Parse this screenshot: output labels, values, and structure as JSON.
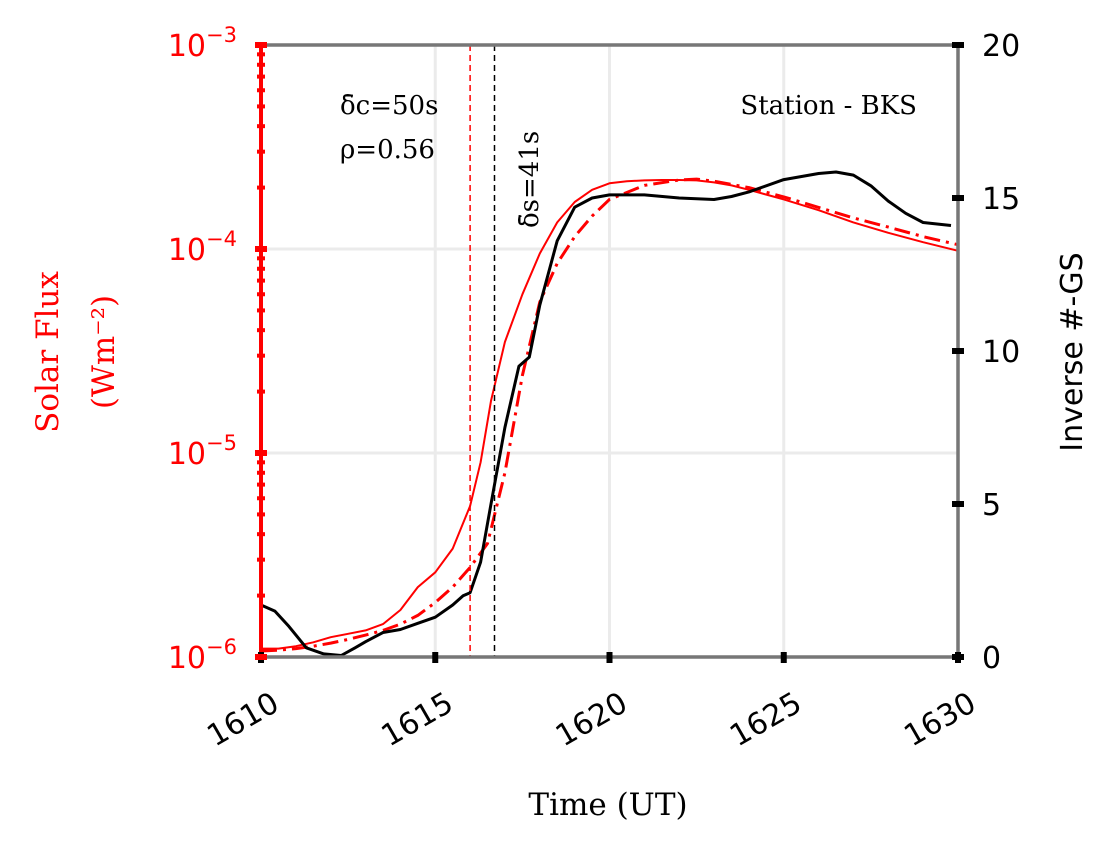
{
  "chart_data": {
    "type": "line",
    "xlabel": "Time (UT)",
    "ylabel_left": [
      "Solar Flux",
      "(Wm⁻²)"
    ],
    "ylabel_right": "Inverse #-GS",
    "xlim": [
      1610,
      1630
    ],
    "x_ticks": [
      1610,
      1615,
      1620,
      1625,
      1630
    ],
    "x_tick_labels": [
      "1610",
      "1615",
      "1620",
      "1625",
      "1630"
    ],
    "ylim_left": [
      1e-06,
      0.001
    ],
    "y_scale_left": "log",
    "y_left_ticks": [
      1e-06,
      1e-05,
      0.0001,
      0.001
    ],
    "y_left_tick_labels": [
      {
        "base": "10",
        "exp": "−6"
      },
      {
        "base": "10",
        "exp": "−5"
      },
      {
        "base": "10",
        "exp": "−4"
      },
      {
        "base": "10",
        "exp": "−3"
      }
    ],
    "ylim_right": [
      0,
      20
    ],
    "y_right_ticks": [
      0,
      5,
      10,
      15,
      20
    ],
    "y_right_tick_labels": [
      "0",
      "5",
      "10",
      "15",
      "20"
    ],
    "grid": true,
    "colors": {
      "flux": "#ff0000",
      "gs": "#000000",
      "spine": "#777777",
      "grid": "#ebebeb"
    },
    "annotations": {
      "delta_c": "δ̄c=50s",
      "rho": "ρ=0.56",
      "delta_s": "δ̄s=41s",
      "station": "Station - BKS"
    },
    "vlines": [
      {
        "x": 1616.0,
        "color": "#ff0000"
      },
      {
        "x": 1616.7,
        "color": "#000000"
      }
    ],
    "series": [
      {
        "axis": "left",
        "style": "solid",
        "color": "#ff0000",
        "x": [
          1610.0,
          1610.5,
          1611.0,
          1611.5,
          1612.0,
          1612.5,
          1613.0,
          1613.5,
          1614.0,
          1614.5,
          1615.0,
          1615.5,
          1616.0,
          1616.3,
          1616.6,
          1617.0,
          1617.5,
          1618.0,
          1618.5,
          1619.0,
          1619.5,
          1620.0,
          1620.5,
          1621.0,
          1621.5,
          1622.0,
          1622.5,
          1623.0,
          1623.5,
          1624.0,
          1625.0,
          1626.0,
          1627.0,
          1628.0,
          1629.0,
          1630.0
        ],
        "y": [
          1.1e-06,
          1.1e-06,
          1.13e-06,
          1.18e-06,
          1.25e-06,
          1.3e-06,
          1.35e-06,
          1.45e-06,
          1.7e-06,
          2.2e-06,
          2.6e-06,
          3.4e-06,
          5.5e-06,
          9e-06,
          1.8e-05,
          3.5e-05,
          6e-05,
          9.5e-05,
          0.000135,
          0.00017,
          0.000195,
          0.00021,
          0.000215,
          0.000217,
          0.000218,
          0.000218,
          0.000217,
          0.000212,
          0.000205,
          0.000195,
          0.000175,
          0.000155,
          0.000135,
          0.00012,
          0.000108,
          9.8e-05
        ]
      },
      {
        "axis": "left",
        "style": "dashdot",
        "color": "#ff0000",
        "x": [
          1610.0,
          1610.5,
          1611.0,
          1611.5,
          1612.0,
          1612.5,
          1613.0,
          1613.5,
          1614.0,
          1614.5,
          1615.0,
          1615.5,
          1616.0,
          1616.5,
          1617.0,
          1617.5,
          1618.0,
          1618.5,
          1619.0,
          1619.5,
          1620.0,
          1621.0,
          1622.0,
          1622.5,
          1623.0,
          1624.0,
          1625.0,
          1626.0,
          1627.0,
          1628.0,
          1629.0,
          1630.0
        ],
        "y": [
          1.07e-06,
          1.08e-06,
          1.1e-06,
          1.13e-06,
          1.17e-06,
          1.22e-06,
          1.28e-06,
          1.35e-06,
          1.45e-06,
          1.6e-06,
          1.85e-06,
          2.2e-06,
          2.75e-06,
          3.6e-06,
          8e-06,
          2.4e-05,
          5.5e-05,
          8.5e-05,
          0.000115,
          0.000145,
          0.000175,
          0.000205,
          0.000218,
          0.00022,
          0.000215,
          0.0002,
          0.00018,
          0.00016,
          0.000142,
          0.000128,
          0.000115,
          0.000105
        ]
      },
      {
        "axis": "right",
        "style": "solid",
        "color": "#000000",
        "x": [
          1610.0,
          1610.4,
          1610.8,
          1611.3,
          1611.8,
          1612.3,
          1612.7,
          1613.0,
          1613.5,
          1614.0,
          1614.5,
          1615.0,
          1615.5,
          1615.8,
          1616.0,
          1616.3,
          1616.6,
          1617.0,
          1617.4,
          1617.7,
          1618.0,
          1618.5,
          1619.0,
          1619.5,
          1620.0,
          1621.0,
          1622.0,
          1623.0,
          1623.5,
          1624.0,
          1625.0,
          1626.0,
          1626.5,
          1627.0,
          1627.5,
          1628.0,
          1628.5,
          1629.0,
          1629.8
        ],
        "y": [
          1.7,
          1.5,
          1.0,
          0.3,
          0.1,
          0.05,
          0.3,
          0.5,
          0.8,
          0.9,
          1.1,
          1.3,
          1.7,
          2.0,
          2.1,
          3.1,
          5.0,
          7.5,
          9.5,
          9.8,
          11.5,
          13.6,
          14.7,
          15.0,
          15.1,
          15.1,
          15.0,
          14.95,
          15.05,
          15.2,
          15.6,
          15.8,
          15.85,
          15.75,
          15.4,
          14.9,
          14.5,
          14.2,
          14.1
        ]
      }
    ]
  }
}
